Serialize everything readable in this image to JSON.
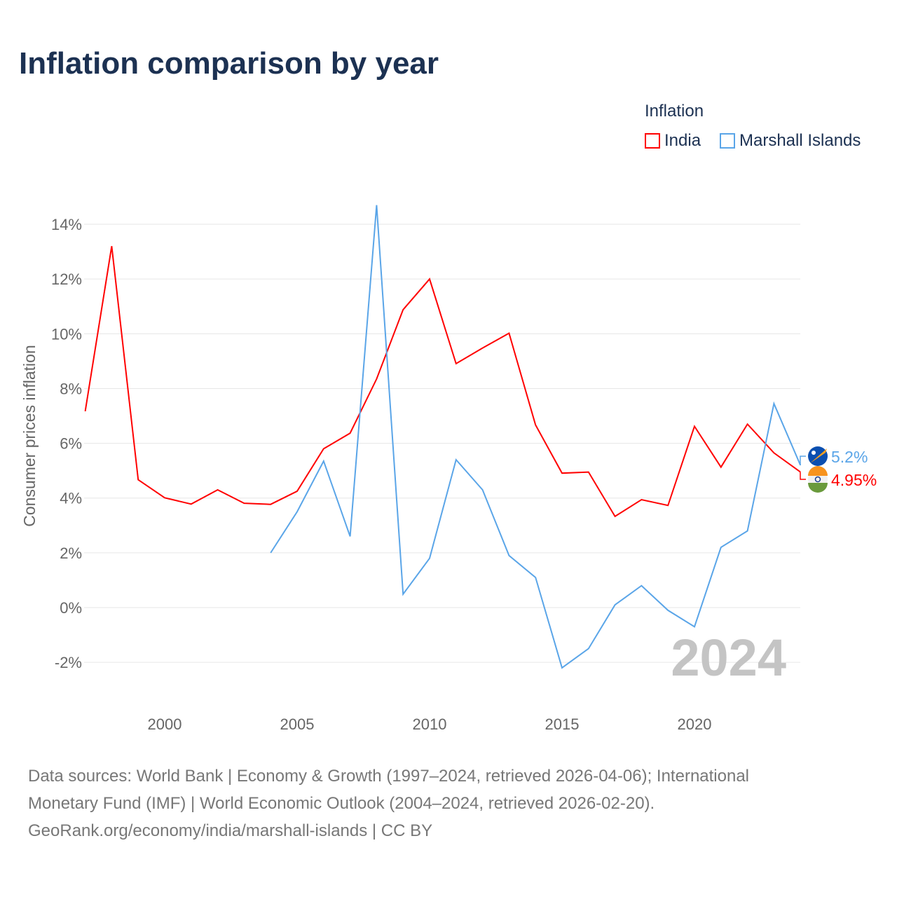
{
  "title": "Inflation comparison by year",
  "legend": {
    "title": "Inflation",
    "items": [
      {
        "name": "India",
        "color": "#ff0000"
      },
      {
        "name": "Marshall Islands",
        "color": "#5aa5e8"
      }
    ]
  },
  "footer": [
    "Data sources: World Bank | Economy & Growth (1997–2024, retrieved 2026-04-06); International",
    "Monetary Fund (IMF) | World Economic Outlook (2004–2024, retrieved 2026-02-20).",
    "GeoRank.org/economy/india/marshall-islands | CC BY"
  ],
  "chart_data": {
    "type": "line",
    "title": "Inflation comparison by year",
    "ylabel": "Consumer prices inflation",
    "xlabel": "",
    "xlim": [
      1997,
      2024
    ],
    "ylim": [
      -3,
      15
    ],
    "yticks": [
      -2,
      0,
      2,
      4,
      6,
      8,
      10,
      12,
      14
    ],
    "ytick_labels": [
      "-2%",
      "0%",
      "2%",
      "4%",
      "6%",
      "8%",
      "10%",
      "12%",
      "14%"
    ],
    "xticks": [
      2000,
      2005,
      2010,
      2015,
      2020
    ],
    "xtick_labels": [
      "2000",
      "2005",
      "2010",
      "2015",
      "2020"
    ],
    "year_label": "2024",
    "series": [
      {
        "name": "India",
        "color": "#ff0000",
        "end_label": "4.95%",
        "x": [
          1997,
          1998,
          1999,
          2000,
          2001,
          2002,
          2003,
          2004,
          2005,
          2006,
          2007,
          2008,
          2009,
          2010,
          2011,
          2012,
          2013,
          2014,
          2015,
          2016,
          2017,
          2018,
          2019,
          2020,
          2021,
          2022,
          2023,
          2024
        ],
        "values": [
          7.17,
          13.2,
          4.67,
          4.01,
          3.78,
          4.3,
          3.81,
          3.77,
          4.25,
          5.8,
          6.37,
          8.35,
          10.88,
          12.0,
          8.91,
          9.48,
          10.02,
          6.67,
          4.91,
          4.95,
          3.33,
          3.94,
          3.73,
          6.62,
          5.13,
          6.7,
          5.65,
          4.95
        ]
      },
      {
        "name": "Marshall Islands",
        "color": "#5aa5e8",
        "end_label": "5.2%",
        "x": [
          2004,
          2005,
          2006,
          2007,
          2008,
          2009,
          2010,
          2011,
          2012,
          2013,
          2014,
          2015,
          2016,
          2017,
          2018,
          2019,
          2020,
          2021,
          2022,
          2023,
          2024
        ],
        "values": [
          2.0,
          3.5,
          5.35,
          2.6,
          14.7,
          0.49,
          1.8,
          5.4,
          4.3,
          1.9,
          1.1,
          -2.2,
          -1.5,
          0.1,
          0.8,
          -0.1,
          -0.7,
          2.2,
          2.8,
          7.45,
          5.2
        ]
      }
    ]
  }
}
